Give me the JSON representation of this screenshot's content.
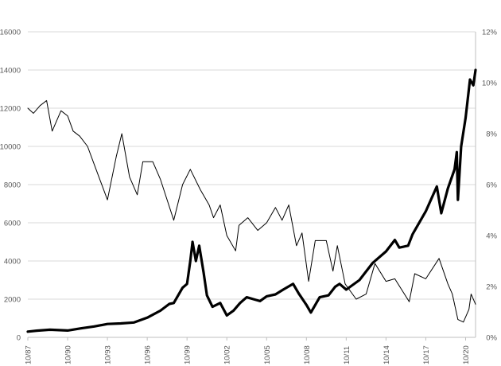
{
  "chart_data": {
    "type": "line",
    "title": "",
    "grid": "horizontal",
    "legend": "none",
    "x_axis": {
      "type": "date",
      "tick_labels": [
        "10/87",
        "10/90",
        "10/93",
        "10/96",
        "10/99",
        "10/02",
        "10/05",
        "10/08",
        "10/11",
        "10/14",
        "10/17",
        "10/20"
      ],
      "range": [
        "1987-10",
        "2021-07"
      ]
    },
    "y_left": {
      "range": [
        0,
        16000
      ],
      "tick_labels": [
        "0",
        "2000",
        "4000",
        "6000",
        "8000",
        "10000",
        "12000",
        "14000",
        "16000"
      ]
    },
    "y_right": {
      "range": [
        0,
        0.12
      ],
      "tick_labels": [
        "0%",
        "2%",
        "4%",
        "6%",
        "8%",
        "10%",
        "12%"
      ]
    },
    "series": [
      {
        "axis": "left",
        "color": "#000000",
        "style": "thick",
        "points": [
          [
            "1987-10",
            300
          ],
          [
            "1988-06",
            350
          ],
          [
            "1989-06",
            400
          ],
          [
            "1990-10",
            360
          ],
          [
            "1991-10",
            470
          ],
          [
            "1992-10",
            570
          ],
          [
            "1993-10",
            700
          ],
          [
            "1994-10",
            730
          ],
          [
            "1995-10",
            780
          ],
          [
            "1996-10",
            1030
          ],
          [
            "1997-10",
            1400
          ],
          [
            "1998-06",
            1750
          ],
          [
            "1998-10",
            1800
          ],
          [
            "1999-06",
            2600
          ],
          [
            "1999-10",
            2800
          ],
          [
            "2000-01",
            4000
          ],
          [
            "2000-03",
            5000
          ],
          [
            "2000-06",
            4000
          ],
          [
            "2000-09",
            4800
          ],
          [
            "2001-01",
            3400
          ],
          [
            "2001-04",
            2200
          ],
          [
            "2001-09",
            1600
          ],
          [
            "2002-04",
            1800
          ],
          [
            "2002-10",
            1150
          ],
          [
            "2003-04",
            1400
          ],
          [
            "2003-10",
            1800
          ],
          [
            "2004-04",
            2100
          ],
          [
            "2004-10",
            2000
          ],
          [
            "2005-04",
            1900
          ],
          [
            "2005-10",
            2150
          ],
          [
            "2006-06",
            2250
          ],
          [
            "2007-01",
            2500
          ],
          [
            "2007-10",
            2800
          ],
          [
            "2008-03",
            2300
          ],
          [
            "2008-10",
            1700
          ],
          [
            "2009-02",
            1300
          ],
          [
            "2009-10",
            2100
          ],
          [
            "2010-06",
            2200
          ],
          [
            "2010-12",
            2650
          ],
          [
            "2011-04",
            2800
          ],
          [
            "2011-10",
            2500
          ],
          [
            "2012-10",
            3000
          ],
          [
            "2013-10",
            3900
          ],
          [
            "2014-10",
            4500
          ],
          [
            "2015-06",
            5100
          ],
          [
            "2015-10",
            4700
          ],
          [
            "2016-06",
            4800
          ],
          [
            "2016-10",
            5400
          ],
          [
            "2017-10",
            6600
          ],
          [
            "2018-08",
            7900
          ],
          [
            "2018-12",
            6500
          ],
          [
            "2019-06",
            7800
          ],
          [
            "2019-12",
            8800
          ],
          [
            "2020-02",
            9700
          ],
          [
            "2020-03",
            7200
          ],
          [
            "2020-06",
            10000
          ],
          [
            "2020-10",
            11500
          ],
          [
            "2021-02",
            13500
          ],
          [
            "2021-05",
            13200
          ],
          [
            "2021-07",
            14000
          ]
        ]
      },
      {
        "axis": "right",
        "color": "#000000",
        "style": "thin",
        "points": [
          [
            "1987-10",
            0.09
          ],
          [
            "1988-03",
            0.088
          ],
          [
            "1988-09",
            0.091
          ],
          [
            "1989-03",
            0.093
          ],
          [
            "1989-08",
            0.081
          ],
          [
            "1990-04",
            0.089
          ],
          [
            "1990-10",
            0.087
          ],
          [
            "1991-03",
            0.081
          ],
          [
            "1991-09",
            0.079
          ],
          [
            "1992-04",
            0.075
          ],
          [
            "1992-10",
            0.068
          ],
          [
            "1993-10",
            0.054
          ],
          [
            "1994-06",
            0.071
          ],
          [
            "1994-11",
            0.08
          ],
          [
            "1995-06",
            0.063
          ],
          [
            "1996-01",
            0.056
          ],
          [
            "1996-06",
            0.069
          ],
          [
            "1997-03",
            0.069
          ],
          [
            "1997-10",
            0.062
          ],
          [
            "1998-10",
            0.046
          ],
          [
            "1999-06",
            0.06
          ],
          [
            "2000-01",
            0.066
          ],
          [
            "2000-10",
            0.058
          ],
          [
            "2001-06",
            0.052
          ],
          [
            "2001-10",
            0.047
          ],
          [
            "2002-04",
            0.052
          ],
          [
            "2002-10",
            0.04
          ],
          [
            "2003-06",
            0.034
          ],
          [
            "2003-09",
            0.044
          ],
          [
            "2004-05",
            0.047
          ],
          [
            "2005-02",
            0.042
          ],
          [
            "2005-10",
            0.045
          ],
          [
            "2006-06",
            0.051
          ],
          [
            "2006-12",
            0.046
          ],
          [
            "2007-06",
            0.052
          ],
          [
            "2008-01",
            0.036
          ],
          [
            "2008-06",
            0.041
          ],
          [
            "2008-12",
            0.022
          ],
          [
            "2009-06",
            0.038
          ],
          [
            "2010-04",
            0.038
          ],
          [
            "2010-10",
            0.026
          ],
          [
            "2011-02",
            0.036
          ],
          [
            "2011-09",
            0.021
          ],
          [
            "2012-07",
            0.015
          ],
          [
            "2013-04",
            0.017
          ],
          [
            "2013-12",
            0.029
          ],
          [
            "2014-10",
            0.022
          ],
          [
            "2015-06",
            0.023
          ],
          [
            "2016-07",
            0.014
          ],
          [
            "2016-12",
            0.025
          ],
          [
            "2017-10",
            0.023
          ],
          [
            "2018-10",
            0.031
          ],
          [
            "2019-06",
            0.021
          ],
          [
            "2019-10",
            0.017
          ],
          [
            "2020-03",
            0.007
          ],
          [
            "2020-08",
            0.006
          ],
          [
            "2021-01",
            0.011
          ],
          [
            "2021-03",
            0.017
          ],
          [
            "2021-07",
            0.013
          ]
        ]
      }
    ]
  }
}
